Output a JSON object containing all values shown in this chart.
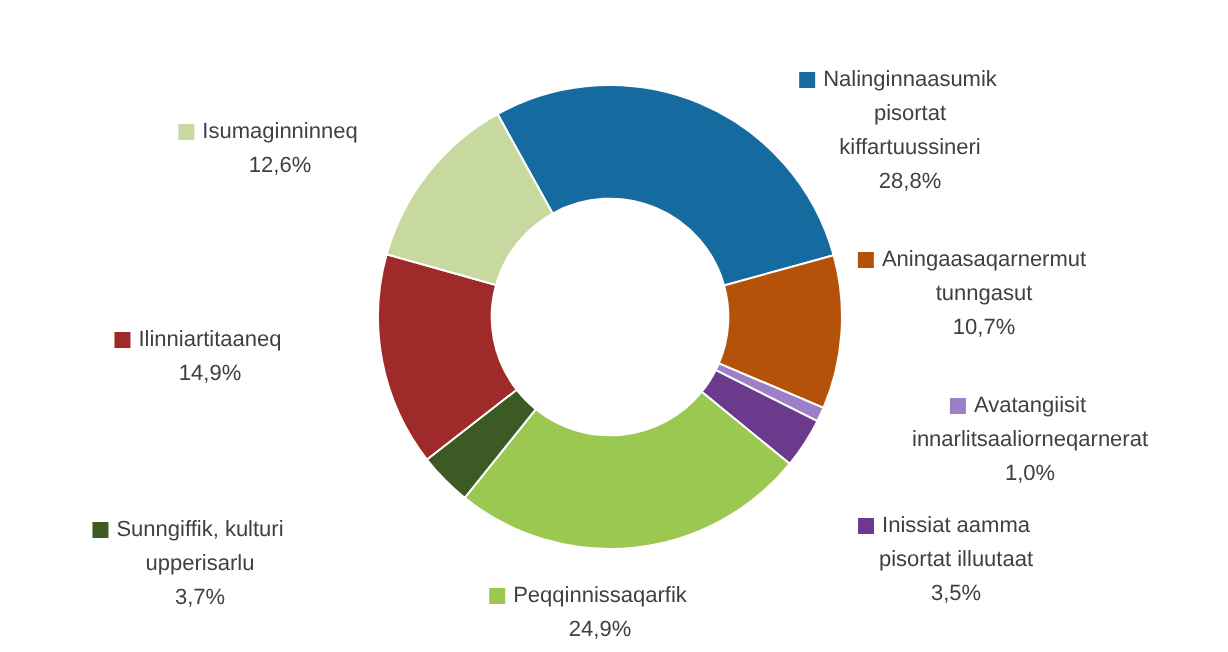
{
  "chart_data": {
    "type": "donut",
    "categories": [
      "Nalinginnaasumik pisortat kiffartuussineri",
      "Aningaasaqarnermut tunngasut",
      "Avatangiisit innarlitsaaliorneqarnerat",
      "Inissiat aamma pisortat illuutaat",
      "Peqqinnissaqarfik",
      "Sunngiffik, kulturi upperisarlu",
      "Ilinniartitaaneq",
      "Isumaginninneq"
    ],
    "values": [
      28.8,
      10.7,
      1.0,
      3.5,
      24.9,
      3.7,
      14.9,
      12.6
    ],
    "value_labels": [
      "28,8%",
      "10,7%",
      "1,0%",
      "3,5%",
      "24,9%",
      "3,7%",
      "14,9%",
      "12,6%"
    ],
    "colors": [
      "#156ba0",
      "#b5520a",
      "#9d7fc8",
      "#6b3a8c",
      "#9bc850",
      "#3c5a24",
      "#9e2a2a",
      "#c8d9a0"
    ],
    "legend": "right"
  }
}
